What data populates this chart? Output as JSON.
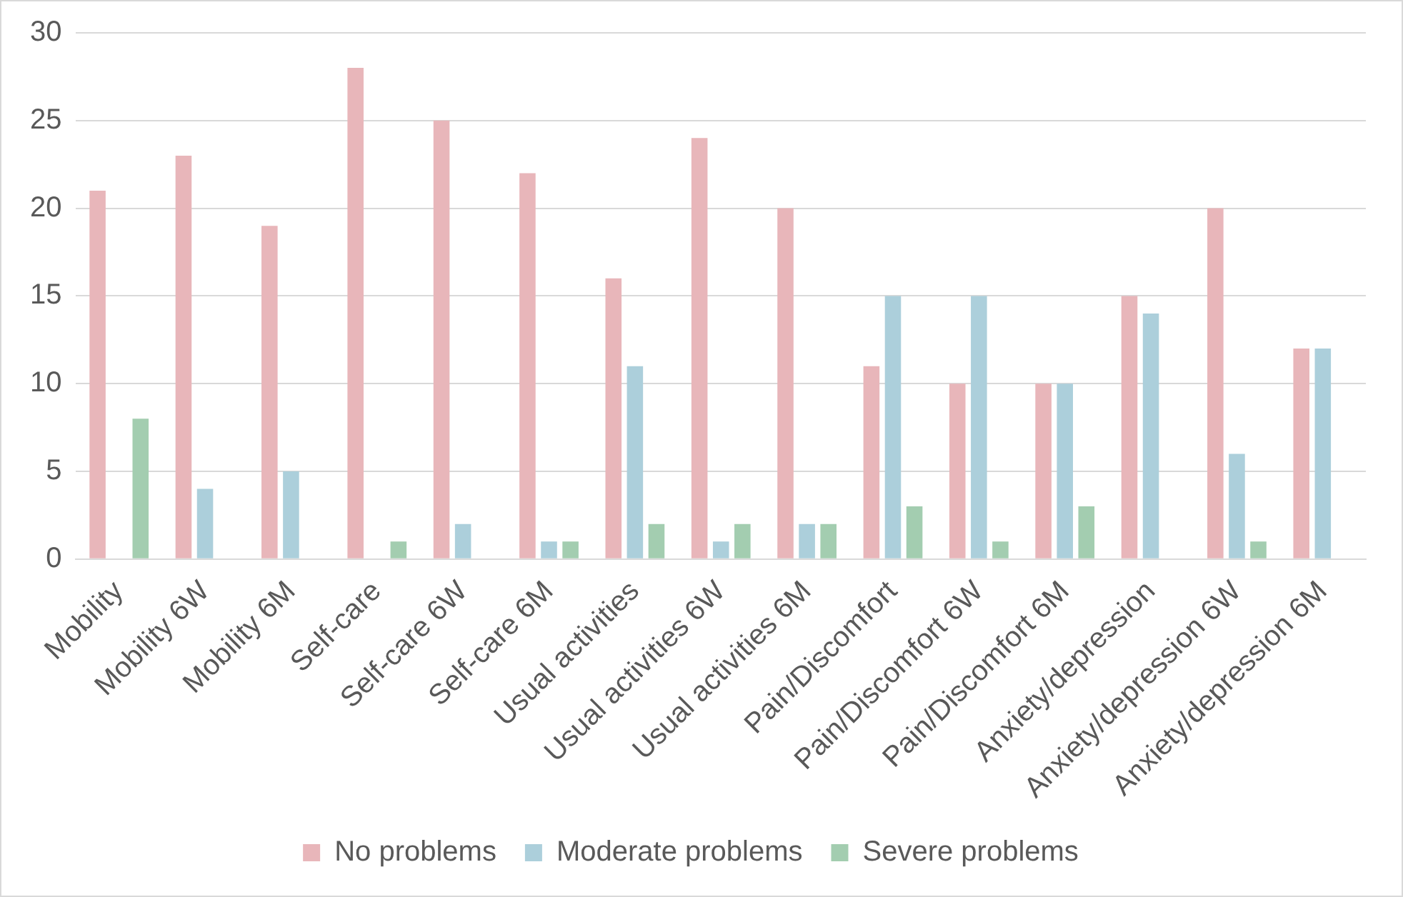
{
  "chart_data": {
    "type": "bar",
    "categories": [
      "Mobility",
      "Mobility 6W",
      "Mobility 6M",
      "Self-care",
      "Self-care 6W",
      "Self-care 6M",
      "Usual activities",
      "Usual activities 6W",
      "Usual activities 6M",
      "Pain/Discomfort",
      "Pain/Discomfort 6W",
      "Pain/Discomfort 6M",
      "Anxiety/depression",
      "Anxiety/depression 6W",
      "Anxiety/depression 6M"
    ],
    "series": [
      {
        "name": "No problems",
        "color": "#e8b6ba",
        "values": [
          21,
          23,
          19,
          28,
          25,
          22,
          16,
          24,
          20,
          11,
          10,
          10,
          15,
          20,
          12
        ]
      },
      {
        "name": "Moderate problems",
        "color": "#accfdb",
        "values": [
          0,
          4,
          5,
          0,
          2,
          1,
          11,
          1,
          2,
          15,
          15,
          10,
          14,
          6,
          12
        ]
      },
      {
        "name": "Severe problems",
        "color": "#a3cdb0",
        "values": [
          8,
          0,
          0,
          1,
          0,
          1,
          2,
          2,
          2,
          3,
          1,
          3,
          0,
          1,
          0
        ]
      }
    ],
    "ylim": [
      0,
      30
    ],
    "yticks": [
      0,
      5,
      10,
      15,
      20,
      25,
      30
    ],
    "grid": "y",
    "legend": "bottom"
  }
}
